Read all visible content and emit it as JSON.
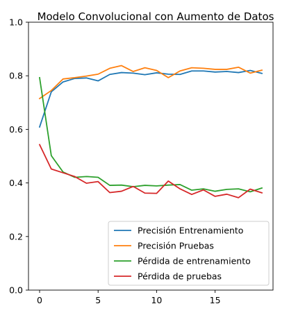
{
  "chart_data": {
    "type": "line",
    "title": "Modelo Convolucional con Aumento de Datos",
    "xlabel": "",
    "ylabel": "",
    "xlim": [
      -0.95,
      19.95
    ],
    "ylim": [
      0.0,
      1.0
    ],
    "xticks": [
      0,
      5,
      10,
      15
    ],
    "yticks": [
      0.0,
      0.2,
      0.4,
      0.6,
      0.8,
      1.0
    ],
    "xtick_labels": [
      "0",
      "5",
      "10",
      "15"
    ],
    "ytick_labels": [
      "0.0",
      "0.2",
      "0.4",
      "0.6",
      "0.8",
      "1.0"
    ],
    "grid": false,
    "legend_position": "lower-right",
    "x": [
      0,
      1,
      2,
      3,
      4,
      5,
      6,
      7,
      8,
      9,
      10,
      11,
      12,
      13,
      14,
      15,
      16,
      17,
      18,
      19
    ],
    "series": [
      {
        "name": "Precisión Entrenamiento",
        "color": "#1f77b4",
        "values": [
          0.609,
          0.74,
          0.777,
          0.79,
          0.792,
          0.781,
          0.805,
          0.812,
          0.81,
          0.804,
          0.811,
          0.806,
          0.805,
          0.818,
          0.818,
          0.814,
          0.816,
          0.812,
          0.82,
          0.809
        ]
      },
      {
        "name": "Precisión Pruebas",
        "color": "#ff7f0e",
        "values": [
          0.715,
          0.745,
          0.788,
          0.793,
          0.799,
          0.806,
          0.828,
          0.838,
          0.816,
          0.83,
          0.82,
          0.793,
          0.818,
          0.83,
          0.828,
          0.824,
          0.824,
          0.832,
          0.81,
          0.821
        ]
      },
      {
        "name": "Pérdida de entrenamiento",
        "color": "#2ca02c",
        "values": [
          0.793,
          0.502,
          0.441,
          0.421,
          0.424,
          0.421,
          0.391,
          0.392,
          0.386,
          0.391,
          0.389,
          0.392,
          0.394,
          0.373,
          0.378,
          0.369,
          0.376,
          0.378,
          0.367,
          0.381
        ]
      },
      {
        "name": "Pérdida de pruebas",
        "color": "#d62728",
        "values": [
          0.543,
          0.452,
          0.438,
          0.424,
          0.399,
          0.405,
          0.364,
          0.369,
          0.387,
          0.362,
          0.361,
          0.407,
          0.378,
          0.357,
          0.374,
          0.35,
          0.358,
          0.345,
          0.377,
          0.363
        ]
      }
    ]
  }
}
